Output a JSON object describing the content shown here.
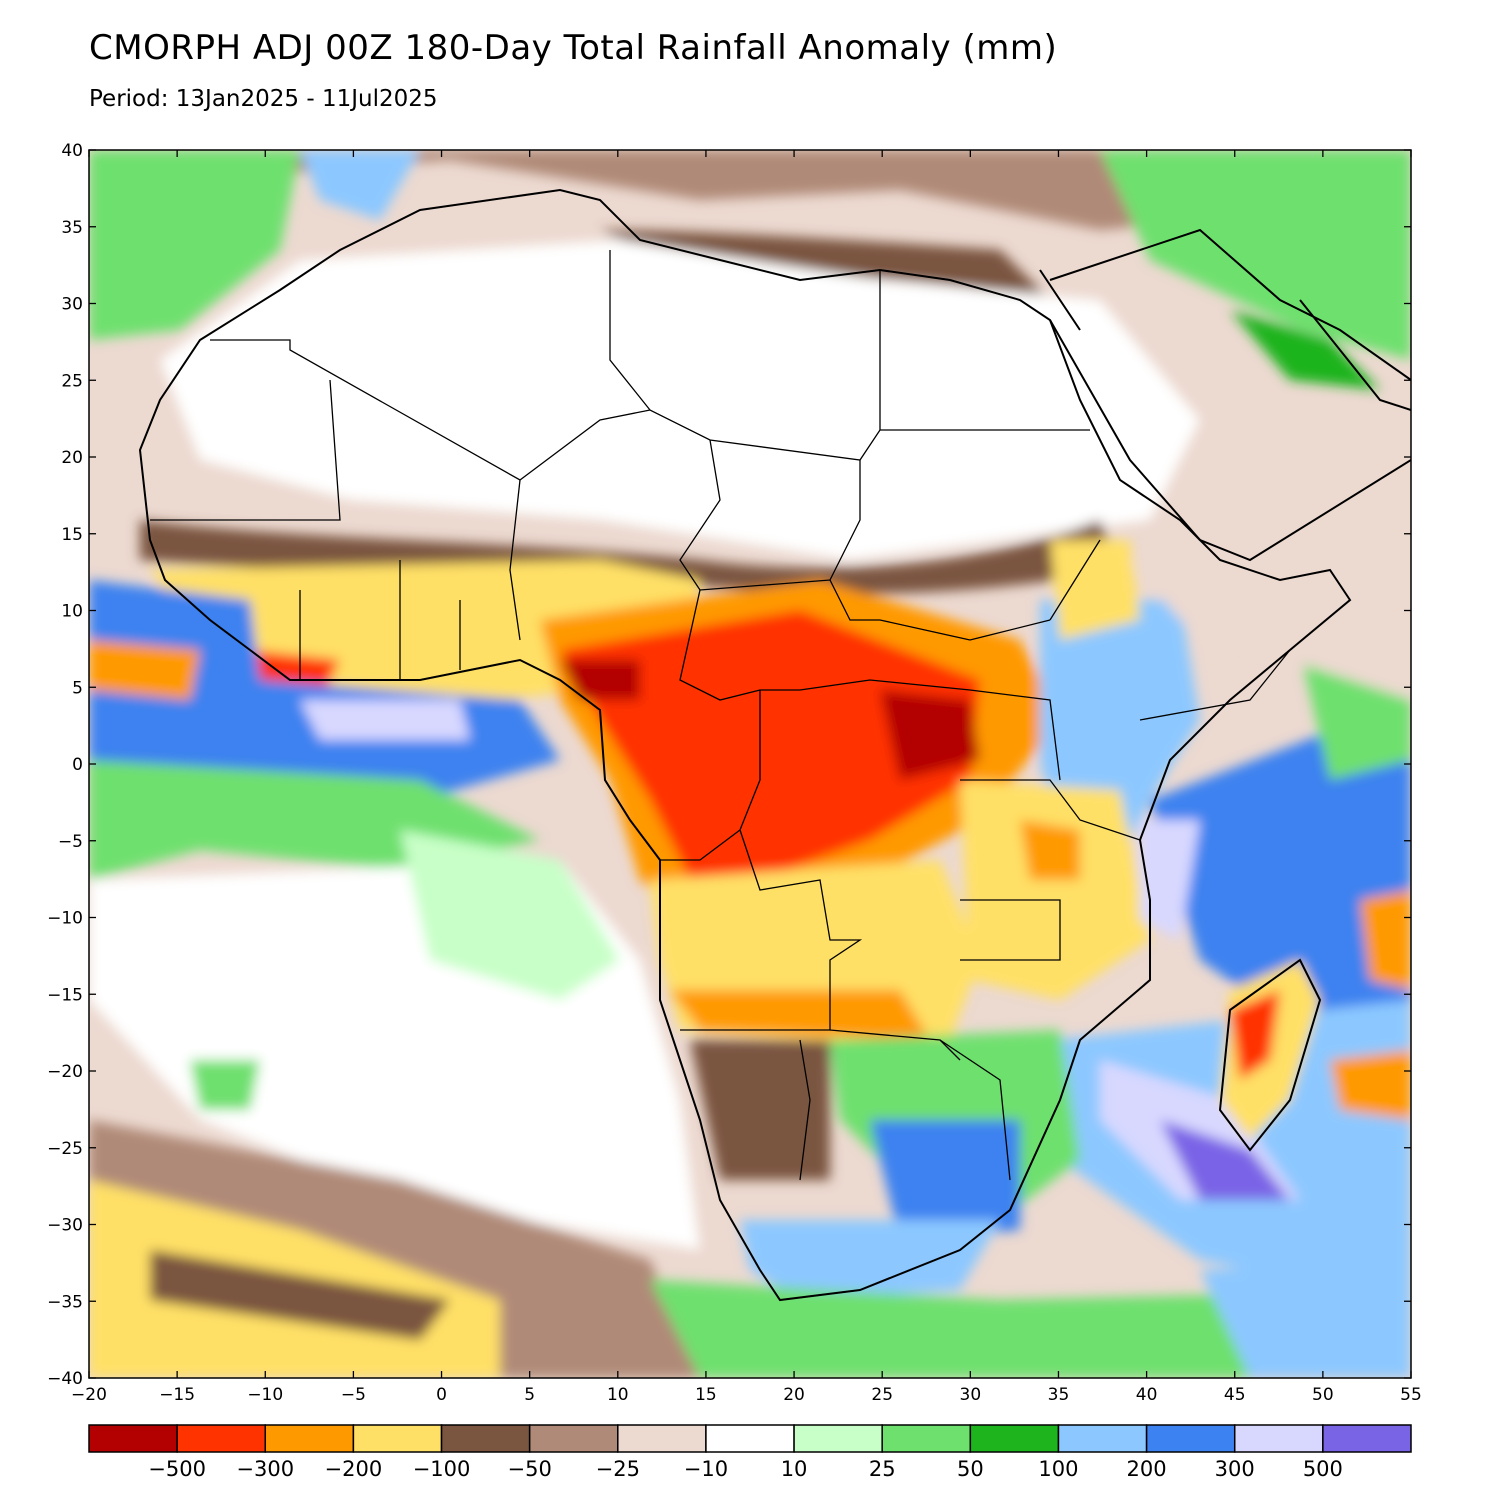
{
  "title": "CMORPH ADJ 00Z 180-Day Total Rainfall Anomaly (mm)",
  "subtitle": "Period: 13Jan2025 - 11Jul2025",
  "map": {
    "lon_range": [
      -20,
      55
    ],
    "lat_range": [
      -40,
      40
    ],
    "lon_ticks": [
      "-20",
      "-15",
      "-10",
      "-5",
      "0",
      "5",
      "10",
      "15",
      "20",
      "25",
      "30",
      "35",
      "40",
      "45",
      "50",
      "55"
    ],
    "lat_ticks": [
      "40",
      "35",
      "30",
      "25",
      "20",
      "15",
      "10",
      "5",
      "0",
      "-5",
      "-10",
      "-15",
      "-20",
      "-25",
      "-30",
      "-35",
      "-40"
    ]
  },
  "colorbar": {
    "colors": [
      "#b30000",
      "#ff3300",
      "#ff9900",
      "#ffe066",
      "#7a5540",
      "#b08a78",
      "#ecd9d0",
      "#ffffff",
      "#c8ffc8",
      "#6ee06e",
      "#1eb41e",
      "#8cc8ff",
      "#3c82f0",
      "#d8d8ff",
      "#7a64e6"
    ],
    "labels": [
      "-500",
      "-300",
      "-200",
      "-100",
      "-50",
      "-25",
      "-10",
      "10",
      "25",
      "50",
      "100",
      "200",
      "300",
      "500"
    ]
  }
}
